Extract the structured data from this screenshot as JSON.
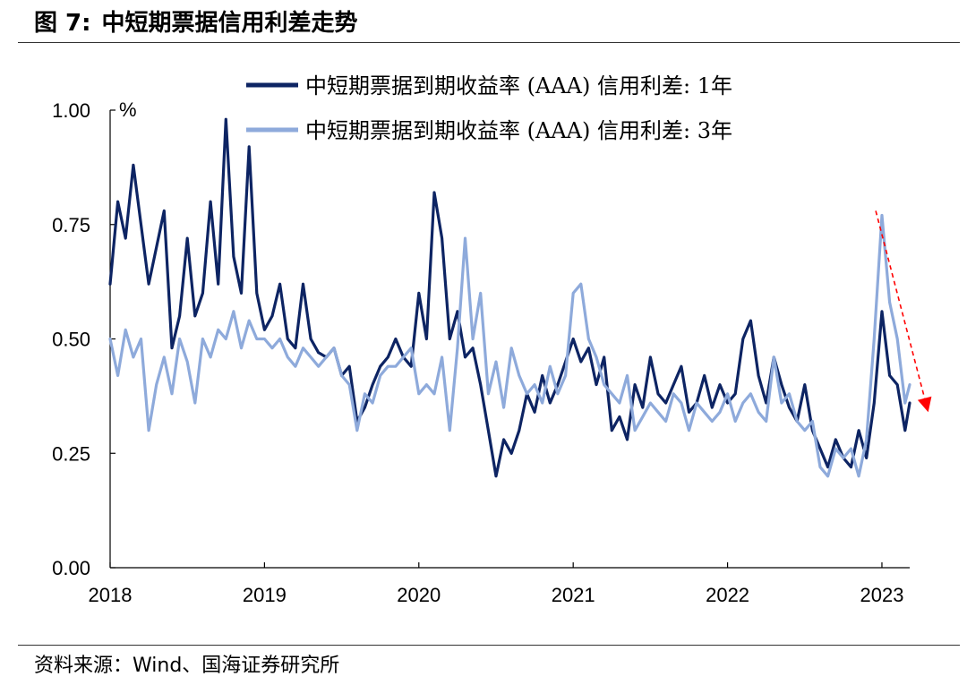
{
  "header": {
    "figure_label": "图 7:",
    "title": "中短期票据信用利差走势"
  },
  "source": "资料来源：Wind、国海证券研究所",
  "colors": {
    "series_1y": "#0d2463",
    "series_3y": "#8eaadb",
    "arrow": "#ff0000",
    "axis": "#000000"
  },
  "chart_data": {
    "type": "line",
    "unit": "%",
    "ylim": [
      0,
      1.0
    ],
    "yticks": [
      "0.00",
      "0.25",
      "0.50",
      "0.75",
      "1.00"
    ],
    "ytick_values": [
      0,
      0.25,
      0.5,
      0.75,
      1.0
    ],
    "xlim": [
      2018.0,
      2023.18
    ],
    "xticks": [
      "2018",
      "2019",
      "2020",
      "2021",
      "2022",
      "2023"
    ],
    "xtick_values": [
      2018,
      2019,
      2020,
      2021,
      2022,
      2023
    ],
    "grid": false,
    "legend_position": "top",
    "series": [
      {
        "name": "中短期票据到期收益率 (AAA) 信用利差: 1年",
        "color": "#0d2463",
        "x": [
          2018.0,
          2018.05,
          2018.1,
          2018.15,
          2018.2,
          2018.25,
          2018.3,
          2018.35,
          2018.4,
          2018.45,
          2018.5,
          2018.55,
          2018.6,
          2018.65,
          2018.7,
          2018.75,
          2018.8,
          2018.85,
          2018.9,
          2018.95,
          2019.0,
          2019.05,
          2019.1,
          2019.15,
          2019.2,
          2019.25,
          2019.3,
          2019.35,
          2019.4,
          2019.45,
          2019.5,
          2019.55,
          2019.6,
          2019.65,
          2019.7,
          2019.75,
          2019.8,
          2019.85,
          2019.9,
          2019.95,
          2020.0,
          2020.05,
          2020.1,
          2020.15,
          2020.2,
          2020.25,
          2020.3,
          2020.35,
          2020.4,
          2020.45,
          2020.5,
          2020.55,
          2020.6,
          2020.65,
          2020.7,
          2020.75,
          2020.8,
          2020.85,
          2020.9,
          2020.95,
          2021.0,
          2021.05,
          2021.1,
          2021.15,
          2021.2,
          2021.25,
          2021.3,
          2021.35,
          2021.4,
          2021.45,
          2021.5,
          2021.55,
          2021.6,
          2021.65,
          2021.7,
          2021.75,
          2021.8,
          2021.85,
          2021.9,
          2021.95,
          2022.0,
          2022.05,
          2022.1,
          2022.15,
          2022.2,
          2022.25,
          2022.3,
          2022.35,
          2022.4,
          2022.45,
          2022.5,
          2022.55,
          2022.6,
          2022.65,
          2022.7,
          2022.75,
          2022.8,
          2022.85,
          2022.9,
          2022.95,
          2023.0,
          2023.05,
          2023.1,
          2023.15,
          2023.18
        ],
        "values": [
          0.62,
          0.8,
          0.72,
          0.88,
          0.75,
          0.62,
          0.7,
          0.78,
          0.48,
          0.55,
          0.72,
          0.55,
          0.6,
          0.8,
          0.62,
          0.98,
          0.68,
          0.6,
          0.92,
          0.6,
          0.52,
          0.55,
          0.62,
          0.5,
          0.48,
          0.62,
          0.5,
          0.47,
          0.46,
          0.48,
          0.42,
          0.44,
          0.32,
          0.35,
          0.4,
          0.44,
          0.46,
          0.5,
          0.46,
          0.44,
          0.6,
          0.5,
          0.82,
          0.72,
          0.5,
          0.56,
          0.46,
          0.48,
          0.4,
          0.3,
          0.2,
          0.28,
          0.25,
          0.3,
          0.38,
          0.34,
          0.42,
          0.36,
          0.4,
          0.45,
          0.5,
          0.45,
          0.48,
          0.4,
          0.46,
          0.3,
          0.33,
          0.28,
          0.4,
          0.35,
          0.46,
          0.38,
          0.36,
          0.4,
          0.44,
          0.34,
          0.36,
          0.42,
          0.35,
          0.4,
          0.36,
          0.38,
          0.5,
          0.54,
          0.42,
          0.36,
          0.46,
          0.4,
          0.35,
          0.32,
          0.4,
          0.3,
          0.26,
          0.22,
          0.28,
          0.24,
          0.22,
          0.3,
          0.24,
          0.36,
          0.56,
          0.42,
          0.4,
          0.3,
          0.36
        ]
      },
      {
        "name": "中短期票据到期收益率 (AAA) 信用利差: 3年",
        "color": "#8eaadb",
        "x": [
          2018.0,
          2018.05,
          2018.1,
          2018.15,
          2018.2,
          2018.25,
          2018.3,
          2018.35,
          2018.4,
          2018.45,
          2018.5,
          2018.55,
          2018.6,
          2018.65,
          2018.7,
          2018.75,
          2018.8,
          2018.85,
          2018.9,
          2018.95,
          2019.0,
          2019.05,
          2019.1,
          2019.15,
          2019.2,
          2019.25,
          2019.3,
          2019.35,
          2019.4,
          2019.45,
          2019.5,
          2019.55,
          2019.6,
          2019.65,
          2019.7,
          2019.75,
          2019.8,
          2019.85,
          2019.9,
          2019.95,
          2020.0,
          2020.05,
          2020.1,
          2020.15,
          2020.2,
          2020.25,
          2020.3,
          2020.35,
          2020.4,
          2020.45,
          2020.5,
          2020.55,
          2020.6,
          2020.65,
          2020.7,
          2020.75,
          2020.8,
          2020.85,
          2020.9,
          2020.95,
          2021.0,
          2021.05,
          2021.1,
          2021.15,
          2021.2,
          2021.25,
          2021.3,
          2021.35,
          2021.4,
          2021.45,
          2021.5,
          2021.55,
          2021.6,
          2021.65,
          2021.7,
          2021.75,
          2021.8,
          2021.85,
          2021.9,
          2021.95,
          2022.0,
          2022.05,
          2022.1,
          2022.15,
          2022.2,
          2022.25,
          2022.3,
          2022.35,
          2022.4,
          2022.45,
          2022.5,
          2022.55,
          2022.6,
          2022.65,
          2022.7,
          2022.75,
          2022.8,
          2022.85,
          2022.9,
          2022.95,
          2023.0,
          2023.05,
          2023.1,
          2023.15,
          2023.18
        ],
        "values": [
          0.5,
          0.42,
          0.52,
          0.46,
          0.5,
          0.3,
          0.4,
          0.46,
          0.38,
          0.5,
          0.45,
          0.36,
          0.5,
          0.46,
          0.52,
          0.5,
          0.56,
          0.48,
          0.54,
          0.5,
          0.5,
          0.48,
          0.5,
          0.46,
          0.44,
          0.48,
          0.46,
          0.44,
          0.46,
          0.48,
          0.42,
          0.4,
          0.3,
          0.38,
          0.36,
          0.42,
          0.44,
          0.44,
          0.46,
          0.48,
          0.38,
          0.4,
          0.38,
          0.46,
          0.3,
          0.48,
          0.72,
          0.5,
          0.6,
          0.38,
          0.45,
          0.35,
          0.48,
          0.42,
          0.38,
          0.4,
          0.36,
          0.44,
          0.38,
          0.42,
          0.6,
          0.62,
          0.5,
          0.46,
          0.4,
          0.38,
          0.36,
          0.42,
          0.3,
          0.33,
          0.36,
          0.34,
          0.32,
          0.38,
          0.36,
          0.3,
          0.36,
          0.34,
          0.32,
          0.34,
          0.38,
          0.32,
          0.36,
          0.38,
          0.34,
          0.32,
          0.46,
          0.36,
          0.38,
          0.32,
          0.3,
          0.32,
          0.22,
          0.2,
          0.26,
          0.24,
          0.26,
          0.2,
          0.28,
          0.5,
          0.77,
          0.58,
          0.5,
          0.36,
          0.4
        ]
      }
    ],
    "arrow": {
      "x_start": 2022.96,
      "y_start": 0.78,
      "x_end": 2023.3,
      "y_end": 0.34
    }
  }
}
